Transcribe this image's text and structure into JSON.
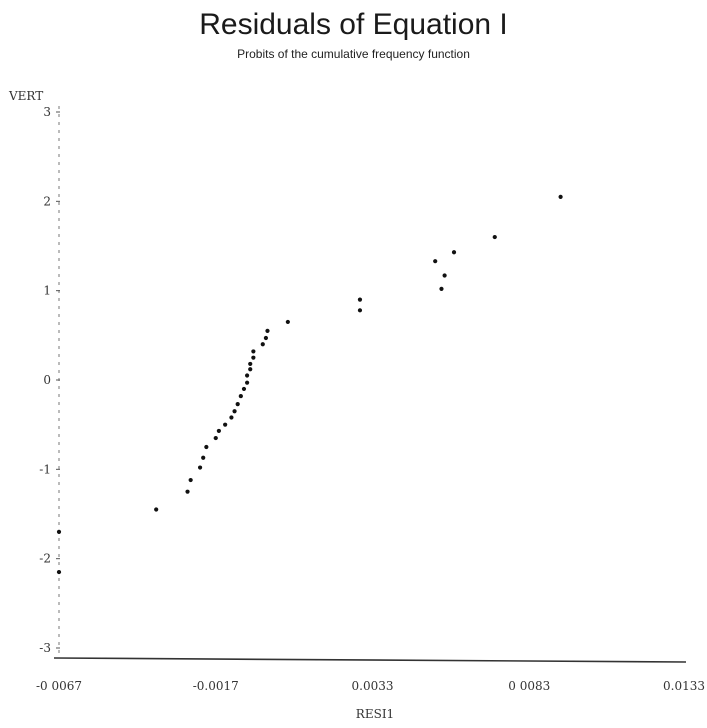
{
  "chart_data": {
    "type": "scatter",
    "title": "Residuals of Equation I",
    "subtitle": "Probits of the cumulative frequency function",
    "ylabel": "VERT",
    "xlabel": "RESI1",
    "xlim": [
      -0.0067,
      0.0133
    ],
    "ylim": [
      -3,
      3
    ],
    "x_ticks": [
      {
        "value": -0.0067,
        "label": "-0 0067"
      },
      {
        "value": -0.0017,
        "label": "-0.0017"
      },
      {
        "value": 0.0033,
        "label": "0.0033"
      },
      {
        "value": 0.0083,
        "label": "0 0083"
      },
      {
        "value": 0.0133,
        "label": "0.0133"
      }
    ],
    "y_ticks": [
      {
        "value": 3,
        "label": "3"
      },
      {
        "value": 2,
        "label": "2"
      },
      {
        "value": 1,
        "label": "1"
      },
      {
        "value": 0,
        "label": "0"
      },
      {
        "value": -1,
        "label": "-1"
      },
      {
        "value": -2,
        "label": "-2"
      },
      {
        "value": -3,
        "label": "-3"
      }
    ],
    "grid": false,
    "points": [
      {
        "x": -0.0067,
        "y": -1.7
      },
      {
        "x": -0.0067,
        "y": -2.15
      },
      {
        "x": -0.0036,
        "y": -1.45
      },
      {
        "x": -0.0026,
        "y": -1.25
      },
      {
        "x": -0.0025,
        "y": -1.12
      },
      {
        "x": -0.0022,
        "y": -0.98
      },
      {
        "x": -0.0021,
        "y": -0.87
      },
      {
        "x": -0.002,
        "y": -0.75
      },
      {
        "x": -0.0017,
        "y": -0.65
      },
      {
        "x": -0.0016,
        "y": -0.57
      },
      {
        "x": -0.0014,
        "y": -0.5
      },
      {
        "x": -0.0012,
        "y": -0.42
      },
      {
        "x": -0.0011,
        "y": -0.35
      },
      {
        "x": -0.001,
        "y": -0.27
      },
      {
        "x": -0.0009,
        "y": -0.18
      },
      {
        "x": -0.0008,
        "y": -0.1
      },
      {
        "x": -0.0007,
        "y": -0.03
      },
      {
        "x": -0.0007,
        "y": 0.05
      },
      {
        "x": -0.0006,
        "y": 0.12
      },
      {
        "x": -0.0006,
        "y": 0.18
      },
      {
        "x": -0.0005,
        "y": 0.25
      },
      {
        "x": -0.0005,
        "y": 0.32
      },
      {
        "x": -0.0002,
        "y": 0.4
      },
      {
        "x": -0.0001,
        "y": 0.47
      },
      {
        "x": -5e-05,
        "y": 0.55
      },
      {
        "x": 0.0006,
        "y": 0.65
      },
      {
        "x": 0.0029,
        "y": 0.78
      },
      {
        "x": 0.0029,
        "y": 0.9
      },
      {
        "x": 0.0055,
        "y": 1.02
      },
      {
        "x": 0.0056,
        "y": 1.17
      },
      {
        "x": 0.0053,
        "y": 1.33
      },
      {
        "x": 0.0059,
        "y": 1.43
      },
      {
        "x": 0.0072,
        "y": 1.6
      },
      {
        "x": 0.0093,
        "y": 2.05
      }
    ]
  }
}
